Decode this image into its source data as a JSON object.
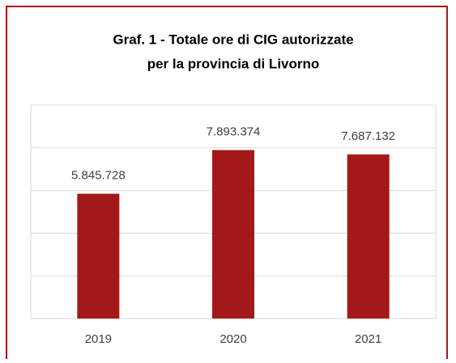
{
  "chart_data": {
    "type": "bar",
    "title": [
      "Graf. 1 - Totale ore di CIG autorizzate",
      "per la provincia di Livorno"
    ],
    "categories": [
      "2019",
      "2020",
      "2021"
    ],
    "values": [
      5845728,
      7893374,
      7687132
    ],
    "value_labels": [
      "5.845.728",
      "7.893.374",
      "7.687.132"
    ],
    "color": "#a31818",
    "ylim": [
      0,
      10000000
    ],
    "yticks": [
      0,
      2000000,
      4000000,
      6000000,
      8000000,
      10000000
    ],
    "grid": true
  }
}
